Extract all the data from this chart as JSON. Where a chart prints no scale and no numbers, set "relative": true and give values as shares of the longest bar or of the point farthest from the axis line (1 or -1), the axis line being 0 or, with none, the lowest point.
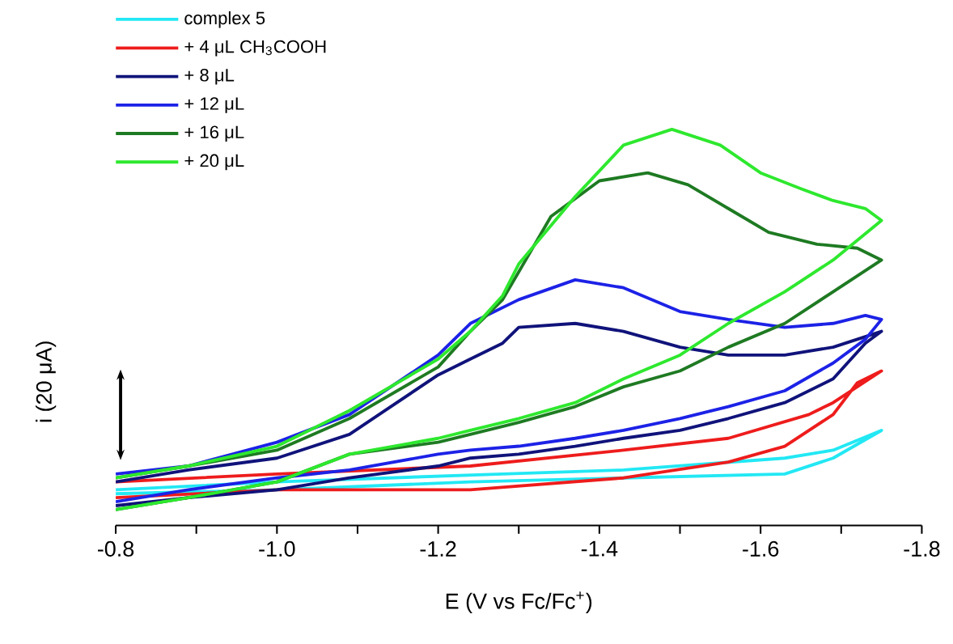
{
  "chart_data": {
    "type": "line",
    "relative": true,
    "xlabel": "E (V vs Fc/Fc$^{+}$)",
    "ylabel": "i (20 μA)",
    "xlim": [
      -0.8,
      -1.8
    ],
    "xticks": [
      {
        "value": -0.8,
        "label": "-0.8"
      },
      {
        "value": -0.9,
        "label": null
      },
      {
        "value": -1.0,
        "label": "-1.0"
      },
      {
        "value": -1.1,
        "label": null
      },
      {
        "value": -1.2,
        "label": "-1.2"
      },
      {
        "value": -1.3,
        "label": null
      },
      {
        "value": -1.4,
        "label": "-1.4"
      },
      {
        "value": -1.5,
        "label": null
      },
      {
        "value": -1.6,
        "label": "-1.6"
      },
      {
        "value": -1.7,
        "label": null
      },
      {
        "value": -1.8,
        "label": "-1.8"
      }
    ],
    "legend": "top left",
    "marker": "none",
    "line_style": "solid",
    "series": [
      {
        "name": "complex 5",
        "color": "#22e8f4",
        "x": [
          -0.8,
          -1.0,
          -1.24,
          -1.43,
          -1.63,
          -1.69,
          -1.75,
          -1.69,
          -1.63,
          -1.43,
          -1.28,
          -1.0,
          -0.8
        ],
        "values": [
          0.08,
          0.09,
          0.11,
          0.12,
          0.13,
          0.17,
          0.24,
          0.19,
          0.17,
          0.14,
          0.13,
          0.11,
          0.09
        ]
      },
      {
        "name": "+ 4 μL CH$_{3}$COOH",
        "color": "#ee1c1c",
        "x": [
          -0.8,
          -1.0,
          -1.24,
          -1.43,
          -1.56,
          -1.63,
          -1.69,
          -1.72,
          -1.75,
          -1.69,
          -1.66,
          -1.56,
          -1.43,
          -1.24,
          -1.0,
          -0.8
        ],
        "values": [
          0.07,
          0.09,
          0.09,
          0.12,
          0.16,
          0.2,
          0.28,
          0.36,
          0.39,
          0.31,
          0.28,
          0.22,
          0.19,
          0.15,
          0.13,
          0.11
        ]
      },
      {
        "name": "+ 8 μL",
        "color": "#10137a",
        "x": [
          -0.8,
          -0.89,
          -1.0,
          -1.09,
          -1.2,
          -1.24,
          -1.28,
          -1.3,
          -1.37,
          -1.43,
          -1.5,
          -1.56,
          -1.63,
          -1.69,
          -1.75,
          -1.73,
          -1.69,
          -1.63,
          -1.56,
          -1.5,
          -1.43,
          -1.37,
          -1.3,
          -1.24,
          -1.2,
          -1.09,
          -1.0,
          -0.89,
          -0.8
        ],
        "values": [
          0.11,
          0.14,
          0.17,
          0.23,
          0.38,
          0.42,
          0.46,
          0.5,
          0.51,
          0.49,
          0.45,
          0.43,
          0.43,
          0.45,
          0.49,
          0.46,
          0.37,
          0.31,
          0.27,
          0.24,
          0.22,
          0.2,
          0.18,
          0.17,
          0.15,
          0.12,
          0.09,
          0.07,
          0.05
        ]
      },
      {
        "name": "+ 12 μL",
        "color": "#1c22e6",
        "x": [
          -0.8,
          -0.89,
          -1.0,
          -1.09,
          -1.2,
          -1.24,
          -1.28,
          -1.3,
          -1.37,
          -1.43,
          -1.5,
          -1.56,
          -1.63,
          -1.69,
          -1.73,
          -1.75,
          -1.73,
          -1.69,
          -1.63,
          -1.56,
          -1.5,
          -1.43,
          -1.37,
          -1.3,
          -1.24,
          -1.2,
          -1.09,
          -1.0,
          -0.89,
          -0.8
        ],
        "values": [
          0.13,
          0.15,
          0.21,
          0.28,
          0.43,
          0.51,
          0.55,
          0.57,
          0.62,
          0.6,
          0.54,
          0.52,
          0.5,
          0.51,
          0.53,
          0.52,
          0.47,
          0.41,
          0.34,
          0.3,
          0.27,
          0.24,
          0.22,
          0.2,
          0.19,
          0.18,
          0.14,
          0.12,
          0.09,
          0.06
        ]
      },
      {
        "name": "+ 16 μL",
        "color": "#1e7a22",
        "x": [
          -0.8,
          -0.89,
          -1.0,
          -1.09,
          -1.2,
          -1.24,
          -1.28,
          -1.34,
          -1.4,
          -1.46,
          -1.51,
          -1.56,
          -1.61,
          -1.67,
          -1.72,
          -1.75,
          -1.69,
          -1.63,
          -1.56,
          -1.5,
          -1.43,
          -1.37,
          -1.3,
          -1.24,
          -1.2,
          -1.09,
          -1.0,
          -0.89,
          -0.8
        ],
        "values": [
          0.12,
          0.15,
          0.19,
          0.27,
          0.4,
          0.49,
          0.57,
          0.78,
          0.87,
          0.89,
          0.86,
          0.8,
          0.74,
          0.71,
          0.7,
          0.67,
          0.59,
          0.51,
          0.45,
          0.39,
          0.35,
          0.3,
          0.26,
          0.23,
          0.21,
          0.18,
          0.11,
          0.07,
          0.04
        ]
      },
      {
        "name": "+ 20 μL",
        "color": "#2ee82e",
        "x": [
          -0.8,
          -0.89,
          -1.0,
          -1.09,
          -1.2,
          -1.24,
          -1.28,
          -1.3,
          -1.37,
          -1.43,
          -1.49,
          -1.55,
          -1.6,
          -1.65,
          -1.69,
          -1.73,
          -1.75,
          -1.69,
          -1.63,
          -1.56,
          -1.5,
          -1.43,
          -1.37,
          -1.3,
          -1.24,
          -1.2,
          -1.09,
          -1.0,
          -0.89,
          -0.8
        ],
        "values": [
          0.12,
          0.15,
          0.2,
          0.29,
          0.42,
          0.49,
          0.58,
          0.66,
          0.83,
          0.96,
          1.0,
          0.96,
          0.89,
          0.85,
          0.82,
          0.8,
          0.77,
          0.67,
          0.59,
          0.51,
          0.43,
          0.37,
          0.31,
          0.27,
          0.24,
          0.22,
          0.18,
          0.11,
          0.07,
          0.04
        ]
      }
    ]
  }
}
